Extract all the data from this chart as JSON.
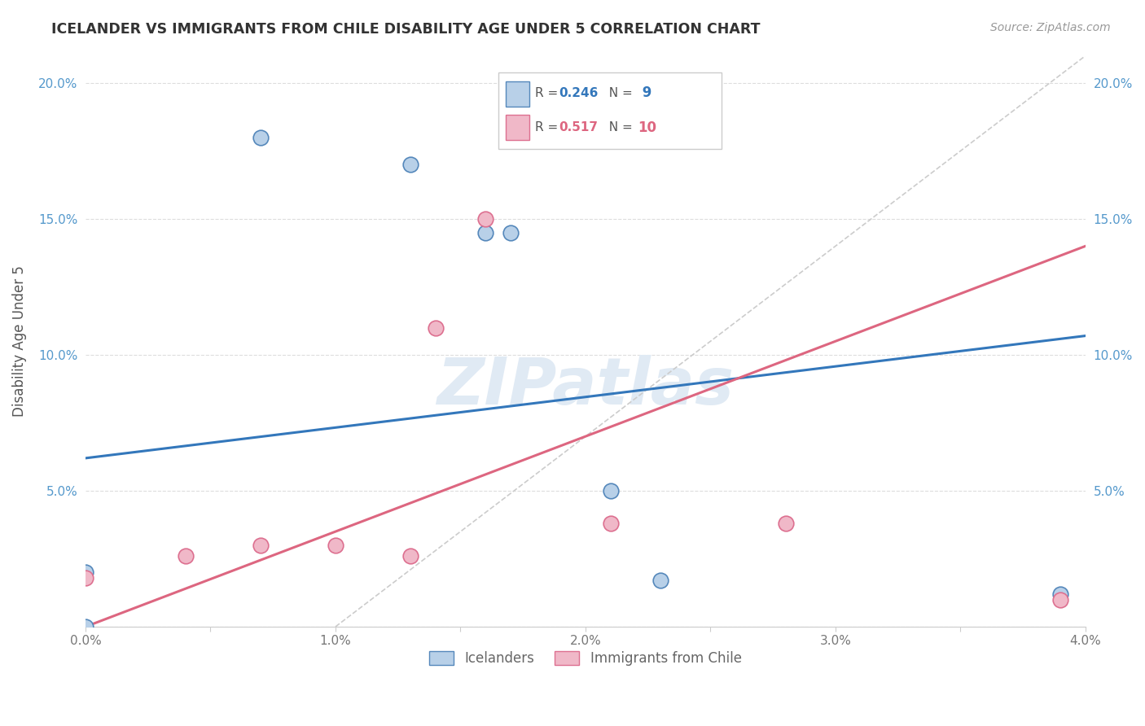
{
  "title": "ICELANDER VS IMMIGRANTS FROM CHILE DISABILITY AGE UNDER 5 CORRELATION CHART",
  "source": "Source: ZipAtlas.com",
  "ylabel_label": "Disability Age Under 5",
  "xlim": [
    0.0,
    0.04
  ],
  "ylim": [
    0.0,
    0.21
  ],
  "x_ticks": [
    0.0,
    0.005,
    0.01,
    0.015,
    0.02,
    0.025,
    0.03,
    0.035,
    0.04
  ],
  "x_tick_labels": [
    "0.0%",
    "",
    "1.0%",
    "",
    "2.0%",
    "",
    "3.0%",
    "",
    "4.0%"
  ],
  "y_ticks": [
    0.0,
    0.05,
    0.1,
    0.15,
    0.2
  ],
  "y_tick_labels": [
    "",
    "5.0%",
    "10.0%",
    "15.0%",
    "20.0%"
  ],
  "icelander_color": "#b8d0e8",
  "icelander_edge": "#5588bb",
  "chile_color": "#f0b8c8",
  "chile_edge": "#dd7090",
  "blue_line_color": "#3377bb",
  "pink_line_color": "#dd6680",
  "dashed_line_color": "#cccccc",
  "R_iceland": 0.246,
  "N_iceland": 9,
  "R_chile": 0.517,
  "N_chile": 10,
  "legend_labels": [
    "Icelanders",
    "Immigrants from Chile"
  ],
  "watermark": "ZIPatlas",
  "blue_line_x0": 0.0,
  "blue_line_y0": 0.062,
  "blue_line_x1": 0.04,
  "blue_line_y1": 0.107,
  "pink_line_x0": 0.0,
  "pink_line_y0": 0.0,
  "pink_line_x1": 0.04,
  "pink_line_y1": 0.14,
  "dash_line_x0": 0.01,
  "dash_line_y0": 0.0,
  "dash_line_x1": 0.04,
  "dash_line_y1": 0.21,
  "iceland_x": [
    0.0,
    0.0,
    0.007,
    0.013,
    0.016,
    0.017,
    0.021,
    0.023,
    0.039
  ],
  "iceland_y": [
    0.0,
    0.02,
    0.18,
    0.17,
    0.145,
    0.145,
    0.05,
    0.017,
    0.012
  ],
  "chile_x": [
    0.0,
    0.004,
    0.007,
    0.01,
    0.013,
    0.014,
    0.016,
    0.021,
    0.028,
    0.039
  ],
  "chile_y": [
    0.018,
    0.026,
    0.03,
    0.03,
    0.026,
    0.11,
    0.15,
    0.038,
    0.038,
    0.01
  ]
}
